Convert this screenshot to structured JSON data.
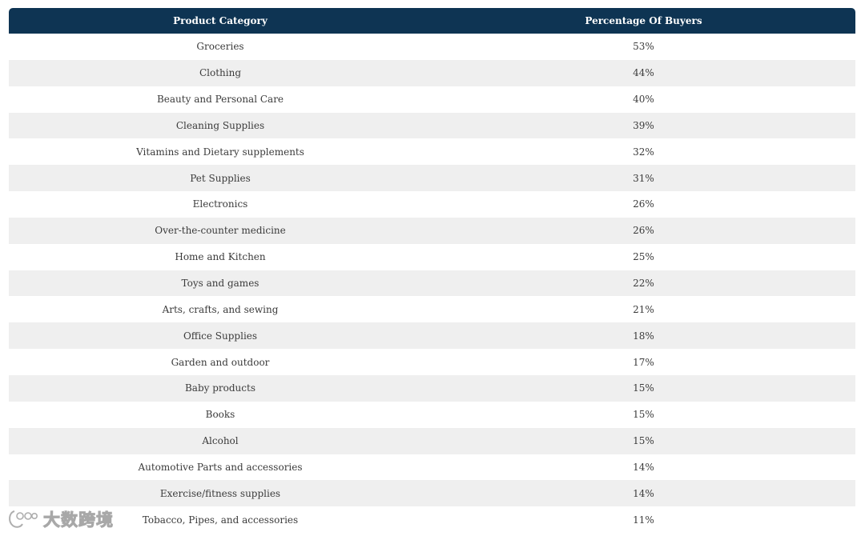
{
  "table": {
    "headers": {
      "category": "Product Category",
      "percent": "Percentage Of Buyers"
    },
    "rows": [
      {
        "category": "Groceries",
        "percent": "53%"
      },
      {
        "category": "Clothing",
        "percent": "44%"
      },
      {
        "category": "Beauty and Personal Care",
        "percent": "40%"
      },
      {
        "category": "Cleaning Supplies",
        "percent": "39%"
      },
      {
        "category": "Vitamins and Dietary supplements",
        "percent": "32%"
      },
      {
        "category": "Pet Supplies",
        "percent": "31%"
      },
      {
        "category": "Electronics",
        "percent": "26%"
      },
      {
        "category": "Over-the-counter medicine",
        "percent": "26%"
      },
      {
        "category": "Home and Kitchen",
        "percent": "25%"
      },
      {
        "category": "Toys and games",
        "percent": "22%"
      },
      {
        "category": "Arts, crafts, and sewing",
        "percent": "21%"
      },
      {
        "category": "Office Supplies",
        "percent": "18%"
      },
      {
        "category": "Garden and outdoor",
        "percent": "17%"
      },
      {
        "category": "Baby products",
        "percent": "15%"
      },
      {
        "category": "Books",
        "percent": "15%"
      },
      {
        "category": "Alcohol",
        "percent": "15%"
      },
      {
        "category": "Automotive Parts and accessories",
        "percent": "14%"
      },
      {
        "category": "Exercise/fitness supplies",
        "percent": "14%"
      },
      {
        "category": "Tobacco, Pipes, and accessories",
        "percent": "11%"
      }
    ]
  },
  "watermark": {
    "text": "大数跨境",
    "icon": "logo-icon"
  },
  "colors": {
    "header_bg": "#0e3453",
    "header_text": "#ffffff",
    "row_alt_bg": "#efefef",
    "cell_text": "#3b3b3b"
  }
}
